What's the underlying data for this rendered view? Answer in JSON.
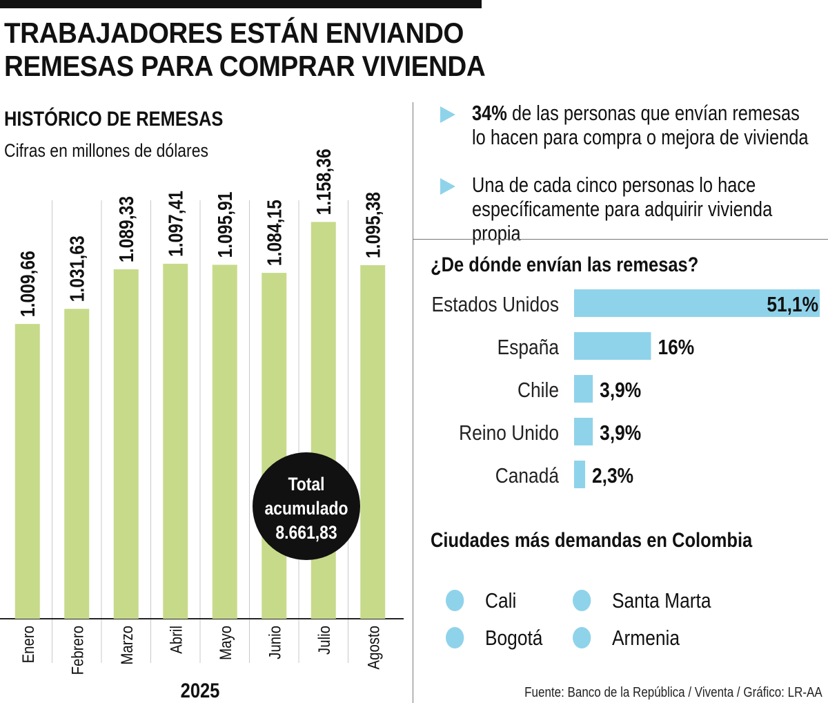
{
  "header": {
    "title_line1": "TRABAJADORES ESTÁN ENVIANDO",
    "title_line2": "REMESAS PARA COMPRAR VIVIENDA"
  },
  "chart_data": [
    {
      "type": "bar",
      "title": "HISTÓRICO DE REMESAS",
      "subtitle": "Cifras en millones de dólares",
      "categories": [
        "Enero",
        "Febrero",
        "Marzo",
        "Abril",
        "Mayo",
        "Junio",
        "Julio",
        "Agosto"
      ],
      "values": [
        1009.66,
        1031.63,
        1089.33,
        1097.41,
        1095.91,
        1084.15,
        1158.36,
        1095.38
      ],
      "value_labels": [
        "1.009,66",
        "1.031,63",
        "1.089,33",
        "1.097,41",
        "1.095,91",
        "1.084,15",
        "1.158,36",
        "1.095,38"
      ],
      "xlabel": "2025",
      "ylabel": "",
      "ylim": [
        580,
        1200
      ],
      "grid": false,
      "colors": {
        "bar": "#c7da8a",
        "separator": "#c8c8c8",
        "axis": "#222222"
      },
      "annotation": {
        "line1": "Total",
        "line2": "acumulado",
        "value": "8.661,83",
        "color": "#111111"
      }
    },
    {
      "type": "bar",
      "orientation": "horizontal",
      "title": "¿De dónde envían las remesas?",
      "categories": [
        "Estados Unidos",
        "España",
        "Chile",
        "Reino Unido",
        "Canadá"
      ],
      "values": [
        51.1,
        16,
        3.9,
        3.9,
        2.3
      ],
      "value_labels": [
        "51,1%",
        "16%",
        "3,9%",
        "3,9%",
        "2,3%"
      ],
      "xlim": [
        0,
        51.1
      ],
      "colors": {
        "bar": "#8fd3ea"
      }
    }
  ],
  "bullets": [
    {
      "bold": "34%",
      "text": " de las personas que envían remesas lo hacen para compra o mejora de vivienda"
    },
    {
      "bold": "",
      "text": "Una de cada cinco personas lo hace específicamente para adquirir vivienda propia"
    }
  ],
  "cities": {
    "heading": "Ciudades más demandas en Colombia",
    "items": [
      "Cali",
      "Santa Marta",
      "Bogotá",
      "Armenia"
    ],
    "color": "#8fd3ea"
  },
  "source": "Fuente: Banco de la República / Viventa / Gráfico: LR-AA"
}
